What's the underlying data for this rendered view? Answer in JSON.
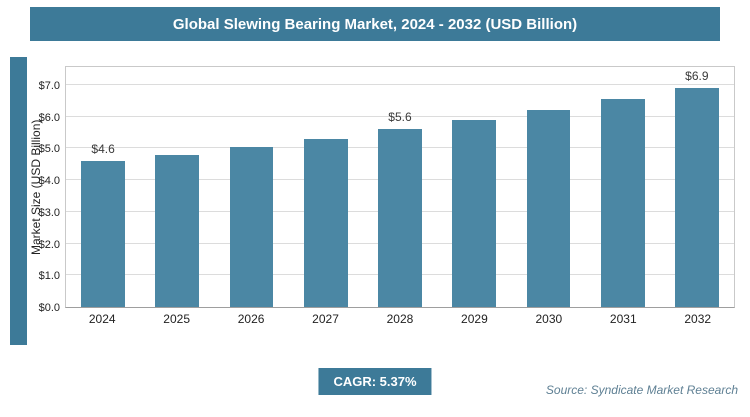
{
  "header": {
    "title": "Global Slewing Bearing Market, 2024 - 2032 (USD Billion)"
  },
  "footer": {
    "cagr_label": "CAGR: 5.37%",
    "source": "Source: Syndicate Market Research"
  },
  "colors": {
    "accent": "#3d7a98",
    "bar": "#4b87a4",
    "grid": "#dcdcdc"
  },
  "chart_data": {
    "type": "bar",
    "title": "Global Slewing Bearing Market, 2024 - 2032 (USD Billion)",
    "categories": [
      "2024",
      "2025",
      "2026",
      "2027",
      "2028",
      "2029",
      "2030",
      "2031",
      "2032"
    ],
    "values": [
      4.6,
      4.8,
      5.05,
      5.3,
      5.6,
      5.9,
      6.2,
      6.55,
      6.9
    ],
    "data_labels": [
      "$4.6",
      "",
      "",
      "",
      "$5.6",
      "",
      "",
      "",
      "$6.9"
    ],
    "xlabel": "",
    "ylabel": "Market Size (USD Billion)",
    "ylim": [
      0,
      7
    ],
    "ytick_step": 1,
    "ytick_labels": [
      "$0.0",
      "$1.0",
      "$2.0",
      "$3.0",
      "$4.0",
      "$5.0",
      "$6.0",
      "$7.0"
    ],
    "grid": true,
    "legend": "none",
    "annotations": {
      "cagr": "CAGR: 5.37%",
      "source": "Source: Syndicate Market Research"
    }
  }
}
